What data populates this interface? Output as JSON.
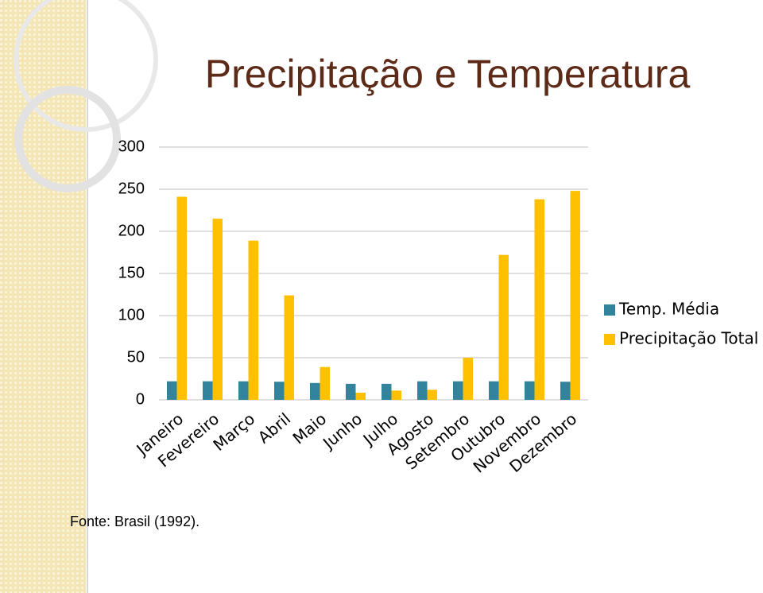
{
  "chart_data": {
    "type": "bar",
    "title": "Precipitação e Temperatura",
    "categories": [
      "Janeiro",
      "Fevereiro",
      "Março",
      "Abril",
      "Maio",
      "Junho",
      "Julho",
      "Agosto",
      "Setembro",
      "Outubro",
      "Novembro",
      "Dezembro"
    ],
    "series": [
      {
        "name": "Temp. Média",
        "color": "#31849b",
        "values": [
          22,
          22,
          22,
          21.5,
          20,
          19,
          19,
          22,
          22,
          22,
          22,
          21.5
        ]
      },
      {
        "name": "Precipitação Total",
        "color": "#ffc000",
        "values": [
          241,
          215,
          189,
          124,
          39,
          8.5,
          11,
          12,
          50,
          172,
          238,
          248
        ]
      }
    ],
    "ylim": [
      0,
      300
    ],
    "yticks": [
      0,
      50,
      100,
      150,
      200,
      250,
      300
    ],
    "grid": true,
    "legend": "right"
  },
  "source": "Fonte: Brasil (1992)."
}
